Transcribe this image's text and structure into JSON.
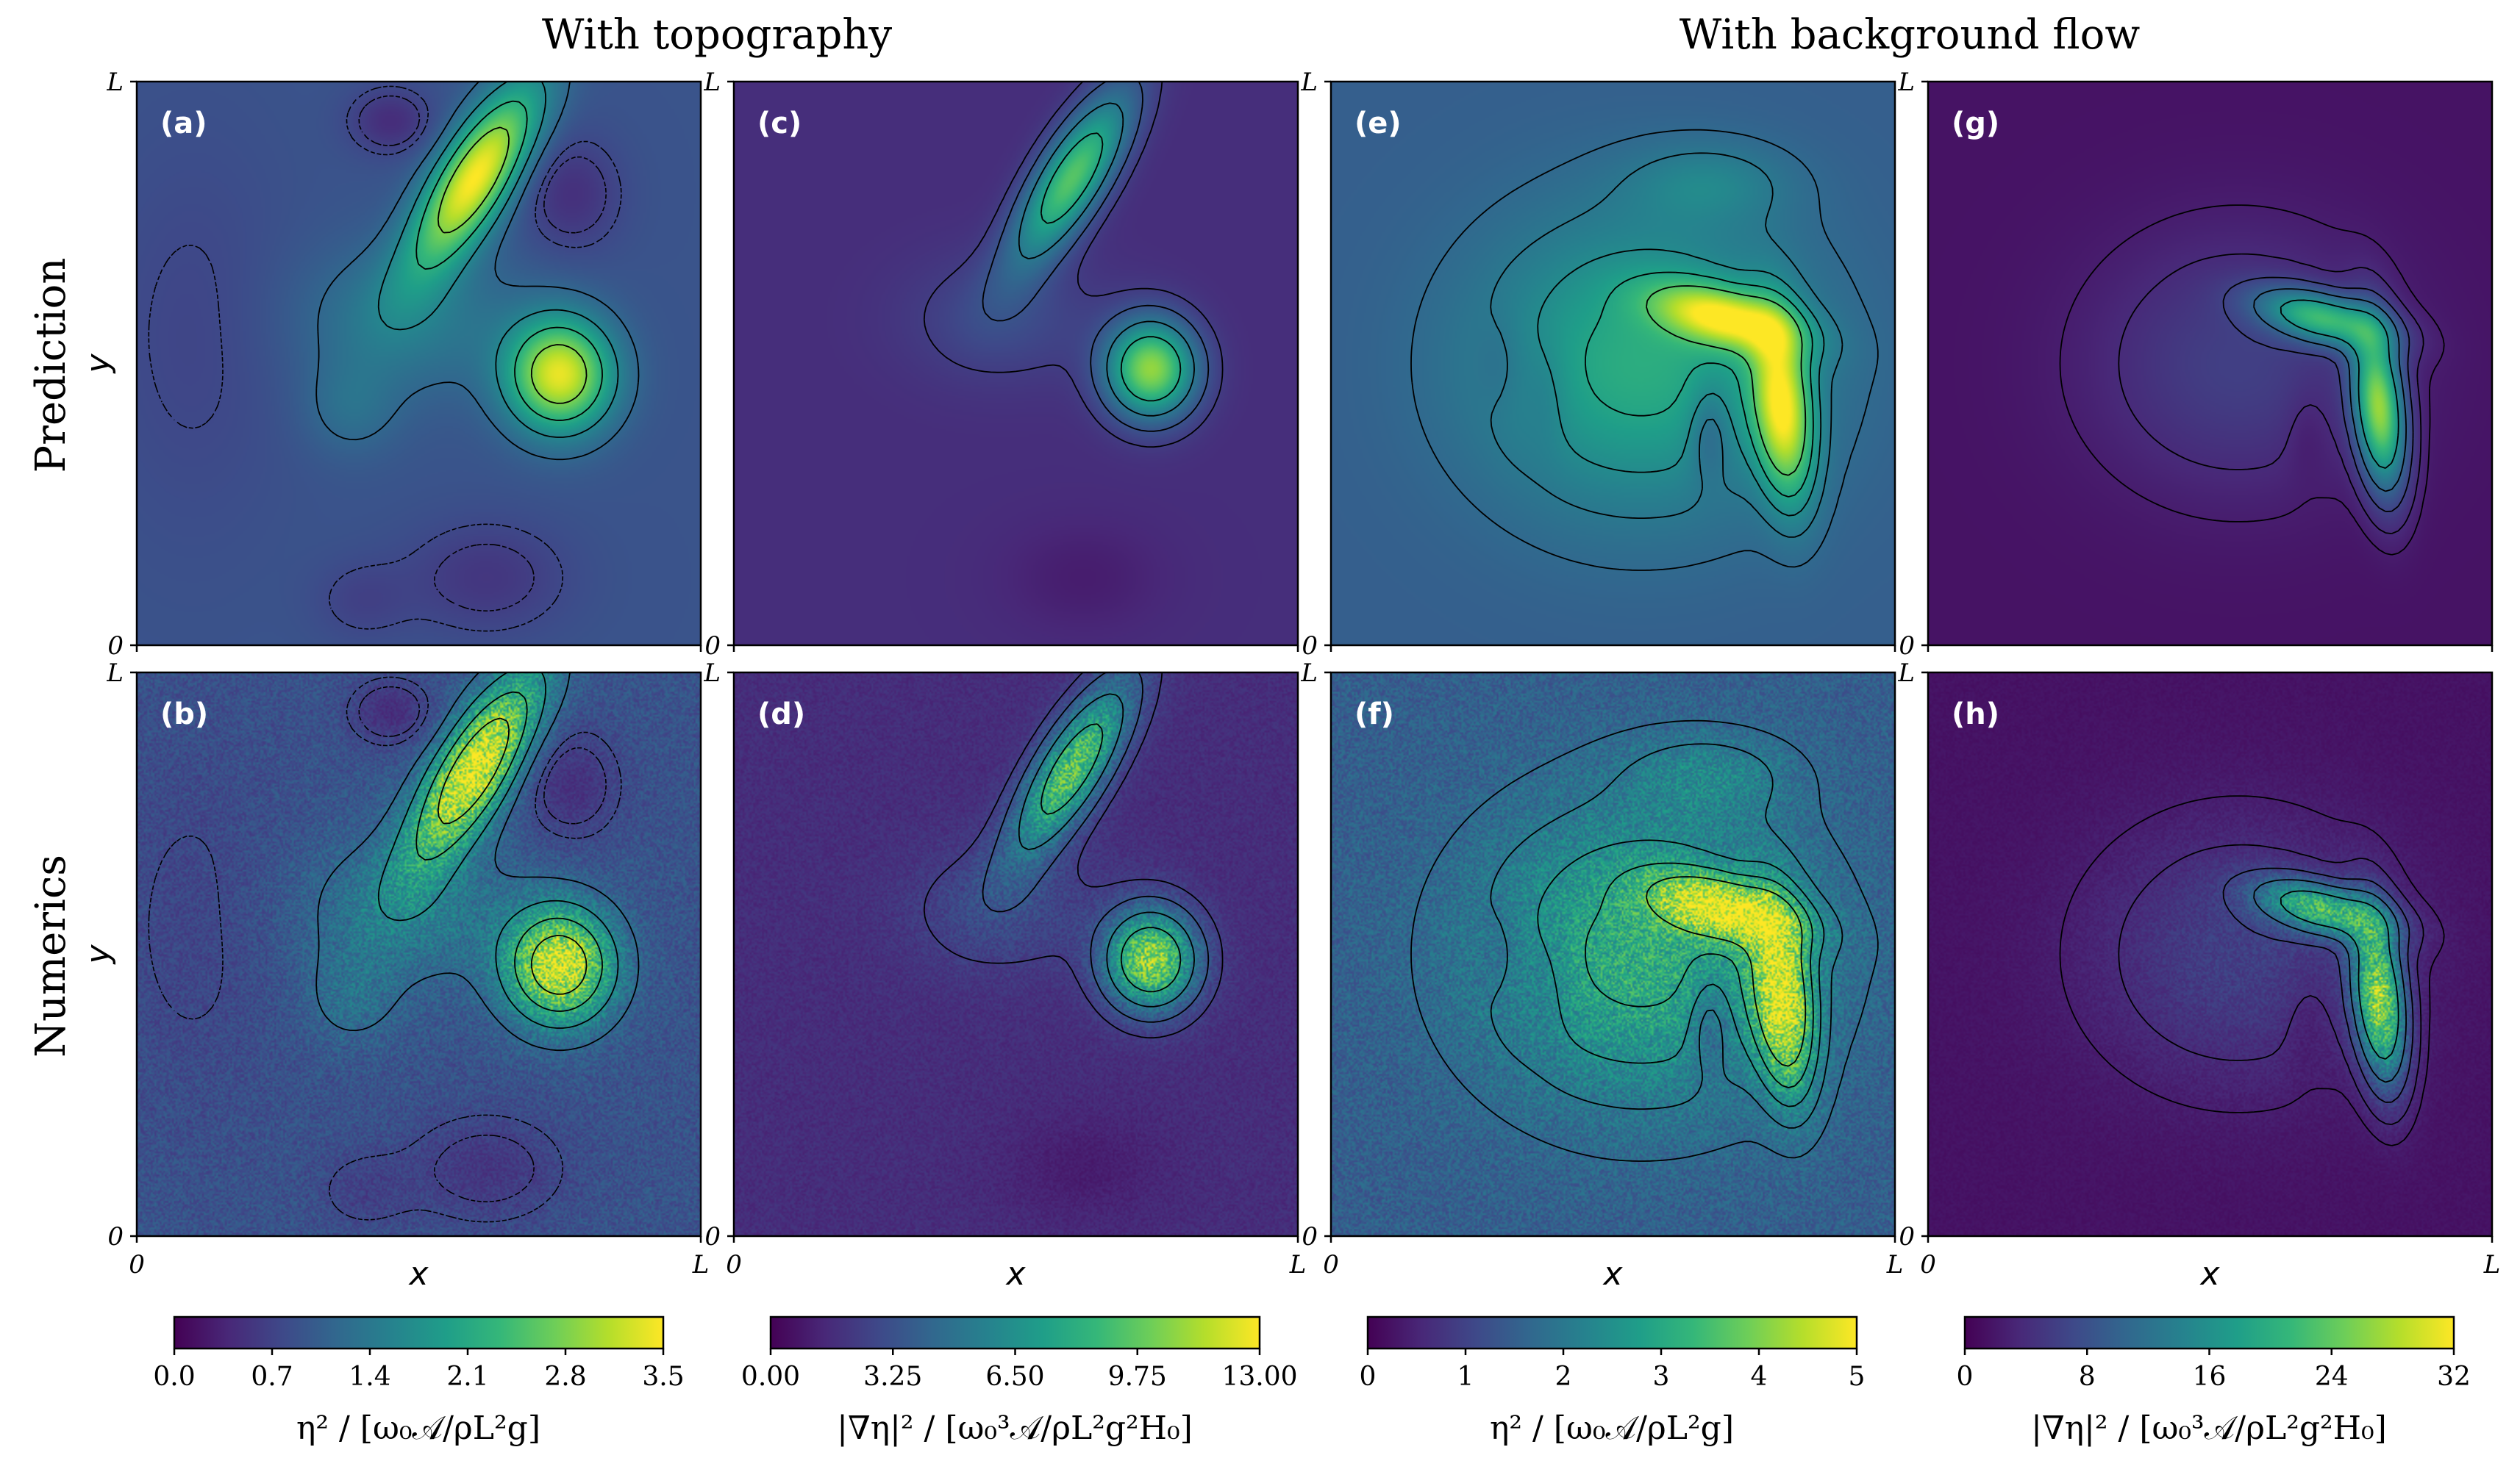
{
  "column_group_titles": [
    "With topography",
    "With background flow"
  ],
  "row_labels": [
    "Prediction",
    "Numerics"
  ],
  "colors": {
    "viridis": [
      "#440154",
      "#482878",
      "#3e4989",
      "#31688e",
      "#26828e",
      "#1f9e89",
      "#35b779",
      "#6ece58",
      "#b5de2b",
      "#fde725"
    ],
    "contour": "#000000",
    "panel_label": "#ffffff"
  },
  "chart_data": [
    {
      "type": "heatmap",
      "panel": "(a)",
      "row": "Prediction",
      "column": "With topography",
      "xlabel": "",
      "ylabel": "y",
      "x_range": [
        "0",
        "L"
      ],
      "y_range": [
        "0",
        "L"
      ],
      "x_ticklabels": [
        "0",
        "L"
      ],
      "y_ticklabels": [
        "0",
        "L"
      ],
      "contours": "solid and dashed",
      "field": "topo_eta",
      "noise": false,
      "background_level": 0.9
    },
    {
      "type": "heatmap",
      "panel": "(b)",
      "row": "Numerics",
      "column": "With topography",
      "xlabel": "x",
      "ylabel": "y",
      "x_range": [
        "0",
        "L"
      ],
      "y_range": [
        "0",
        "L"
      ],
      "x_ticklabels": [
        "0",
        "L"
      ],
      "y_ticklabels": [
        "0",
        "L"
      ],
      "contours": "solid and dashed",
      "field": "topo_eta",
      "noise": true,
      "background_level": 0.9
    },
    {
      "type": "heatmap",
      "panel": "(c)",
      "row": "Prediction",
      "column": "With topography",
      "xlabel": "",
      "ylabel": "",
      "x_range": [
        "0",
        "L"
      ],
      "y_range": [
        "0",
        "L"
      ],
      "x_ticklabels": [
        "0",
        "L"
      ],
      "y_ticklabels": [
        "0",
        "L"
      ],
      "contours": "solid",
      "field": "topo_grad",
      "noise": false,
      "background_level": 0.12
    },
    {
      "type": "heatmap",
      "panel": "(d)",
      "row": "Numerics",
      "column": "With topography",
      "xlabel": "x",
      "ylabel": "",
      "x_range": [
        "0",
        "L"
      ],
      "y_range": [
        "0",
        "L"
      ],
      "x_ticklabels": [
        "0",
        "L"
      ],
      "y_ticklabels": [
        "0",
        "L"
      ],
      "contours": "solid",
      "field": "topo_grad",
      "noise": true,
      "background_level": 0.12
    },
    {
      "type": "heatmap",
      "panel": "(e)",
      "row": "Prediction",
      "column": "With background flow",
      "xlabel": "",
      "ylabel": "",
      "x_range": [
        "0",
        "L"
      ],
      "y_range": [
        "0",
        "L"
      ],
      "x_ticklabels": [
        "0",
        "L"
      ],
      "y_ticklabels": [
        "0",
        "L"
      ],
      "contours": "solid",
      "field": "flow_eta",
      "noise": false,
      "background_level": 0.28
    },
    {
      "type": "heatmap",
      "panel": "(f)",
      "row": "Numerics",
      "column": "With background flow",
      "xlabel": "x",
      "ylabel": "",
      "x_range": [
        "0",
        "L"
      ],
      "y_range": [
        "0",
        "L"
      ],
      "x_ticklabels": [
        "0",
        "L"
      ],
      "y_ticklabels": [
        "0",
        "L"
      ],
      "contours": "solid",
      "field": "flow_eta",
      "noise": true,
      "background_level": 0.28
    },
    {
      "type": "heatmap",
      "panel": "(g)",
      "row": "Prediction",
      "column": "With background flow",
      "xlabel": "",
      "ylabel": "",
      "x_range": [
        "0",
        "L"
      ],
      "y_range": [
        "0",
        "L"
      ],
      "x_ticklabels": [
        "0",
        "L"
      ],
      "y_ticklabels": [
        "0",
        "L"
      ],
      "contours": "solid",
      "field": "flow_grad",
      "noise": false,
      "background_level": 0.04
    },
    {
      "type": "heatmap",
      "panel": "(h)",
      "row": "Numerics",
      "column": "With background flow",
      "xlabel": "x",
      "ylabel": "",
      "x_range": [
        "0",
        "L"
      ],
      "y_range": [
        "0",
        "L"
      ],
      "x_ticklabels": [
        "0",
        "L"
      ],
      "y_ticklabels": [
        "0",
        "L"
      ],
      "contours": "solid",
      "field": "flow_grad",
      "noise": true,
      "background_level": 0.04
    }
  ],
  "colorbars": [
    {
      "range": [
        0,
        3.5
      ],
      "ticklabels": [
        "0.0",
        "0.7",
        "1.4",
        "2.1",
        "2.8",
        "3.5"
      ],
      "label": "η² / [ω₀𝒜/ρL²g]"
    },
    {
      "range": [
        0,
        13
      ],
      "ticklabels": [
        "0.00",
        "3.25",
        "6.50",
        "9.75",
        "13.00"
      ],
      "label": "|∇η|² / [ω₀³𝒜/ρL²g²H₀]"
    },
    {
      "range": [
        0,
        5
      ],
      "ticklabels": [
        "0",
        "1",
        "2",
        "3",
        "4",
        "5"
      ],
      "label": "η² / [ω₀𝒜/ρL²g]"
    },
    {
      "range": [
        0,
        32
      ],
      "ticklabels": [
        "0",
        "8",
        "16",
        "24",
        "32"
      ],
      "label": "|∇η|² / [ω₀³𝒜/ρL²g²H₀]"
    }
  ]
}
